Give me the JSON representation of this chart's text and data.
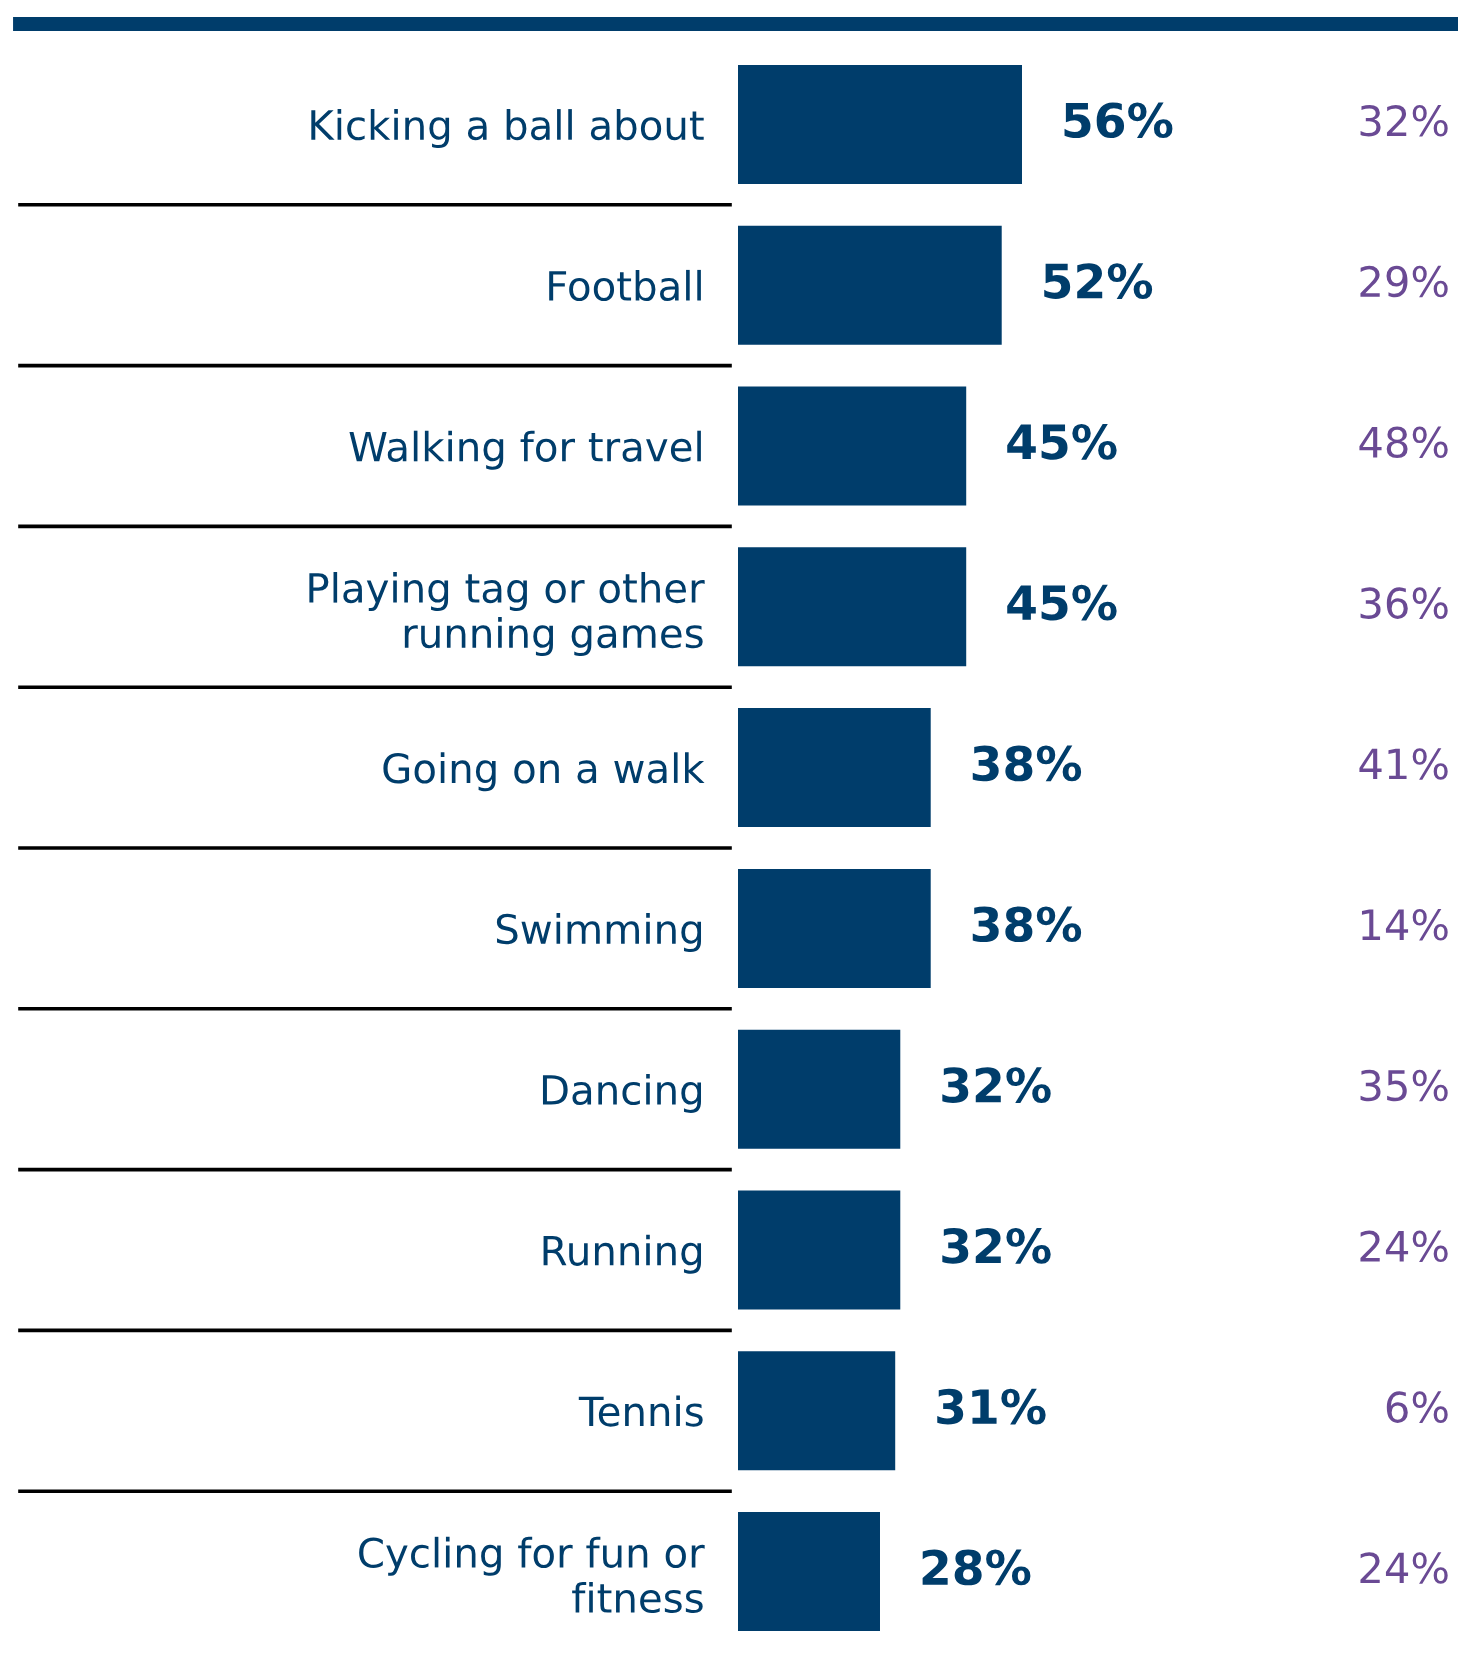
{
  "chart_data": {
    "type": "bar",
    "orientation": "horizontal",
    "categories": [
      "Kicking a ball about",
      "Football",
      "Walking for travel",
      "Playing tag or other\nrunning games",
      "Going on a walk",
      "Swimming",
      "Dancing",
      "Running",
      "Tennis",
      "Cycling for fun or\nfitness"
    ],
    "series": [
      {
        "color": "#003d6b",
        "values": [
          56,
          52,
          45,
          45,
          38,
          38,
          32,
          32,
          31,
          28
        ],
        "value_labels": [
          "56%",
          "52%",
          "45%",
          "45%",
          "38%",
          "38%",
          "32%",
          "32%",
          "31%",
          "28%"
        ]
      }
    ],
    "annotations": [
      "32%",
      "29%",
      "48%",
      "36%",
      "41%",
      "14%",
      "35%",
      "24%",
      "6%",
      "24%"
    ],
    "grid": false,
    "tick_labels": "y"
  }
}
